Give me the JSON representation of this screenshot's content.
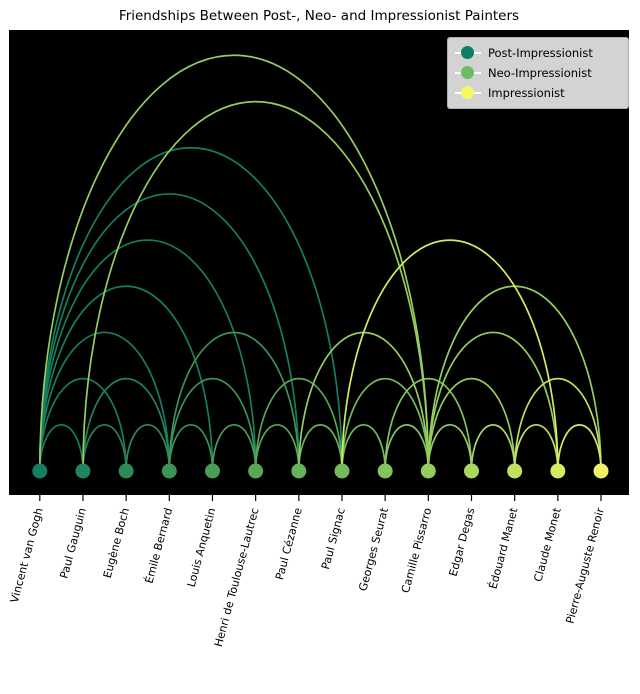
{
  "title": "Friendships Between Post-, Neo- and Impressionist Painters",
  "legend": {
    "items": [
      {
        "label": "Post-Impressionist",
        "color": "#0e7e64"
      },
      {
        "label": "Neo-Impressionist",
        "color": "#6abd62"
      },
      {
        "label": "Impressionist",
        "color": "#f6f763"
      }
    ]
  },
  "chart_data": {
    "type": "arc-diagram",
    "background": "#000000",
    "baseline": "nodes evenly spaced on bottom of black axes; arcs are half-ellipses above baseline, arc height ~= span",
    "legend_position": "upper right",
    "nodes": [
      {
        "name": "Vincent van Gogh",
        "color": "#157e60"
      },
      {
        "name": "Paul Gauguin",
        "color": "#21845c"
      },
      {
        "name": "Eugène Boch",
        "color": "#2e8b58"
      },
      {
        "name": "Émile Bernard",
        "color": "#3b9356"
      },
      {
        "name": "Louis Anquetin",
        "color": "#499d55"
      },
      {
        "name": "Henri de Toulouse-Lautrec",
        "color": "#57a757"
      },
      {
        "name": "Paul Cézanne",
        "color": "#66b15a"
      },
      {
        "name": "Paul Signac",
        "color": "#74ba5c"
      },
      {
        "name": "Georges Seurat",
        "color": "#84c45e"
      },
      {
        "name": "Camille Pissarro",
        "color": "#95cd5f"
      },
      {
        "name": "Edgar Degas",
        "color": "#a9d75f"
      },
      {
        "name": "Édouard Manet",
        "color": "#c0e160"
      },
      {
        "name": "Claude Monet",
        "color": "#d8ea61"
      },
      {
        "name": "Pierre-Auguste Renoir",
        "color": "#f0f263"
      }
    ],
    "edges": [
      {
        "source": 0,
        "target": 1,
        "color": "#157e60"
      },
      {
        "source": 0,
        "target": 2,
        "color": "#157e60"
      },
      {
        "source": 0,
        "target": 3,
        "color": "#157e60"
      },
      {
        "source": 0,
        "target": 4,
        "color": "#157e60"
      },
      {
        "source": 0,
        "target": 5,
        "color": "#157e60"
      },
      {
        "source": 0,
        "target": 6,
        "color": "#157e60"
      },
      {
        "source": 0,
        "target": 7,
        "color": "#157e60"
      },
      {
        "source": 1,
        "target": 2,
        "color": "#21845c"
      },
      {
        "source": 1,
        "target": 3,
        "color": "#21845c"
      },
      {
        "source": 2,
        "target": 3,
        "color": "#2e8b58"
      },
      {
        "source": 3,
        "target": 4,
        "color": "#3b9356"
      },
      {
        "source": 3,
        "target": 5,
        "color": "#3b9356"
      },
      {
        "source": 3,
        "target": 6,
        "color": "#3b9356"
      },
      {
        "source": 4,
        "target": 5,
        "color": "#499d55"
      },
      {
        "source": 5,
        "target": 6,
        "color": "#57a757"
      },
      {
        "source": 5,
        "target": 7,
        "color": "#57a757"
      },
      {
        "source": 6,
        "target": 7,
        "color": "#66b15a"
      },
      {
        "source": 7,
        "target": 8,
        "color": "#74ba5c"
      },
      {
        "source": 7,
        "target": 9,
        "color": "#74ba5c"
      },
      {
        "source": 8,
        "target": 9,
        "color": "#84c45e"
      },
      {
        "source": 8,
        "target": 10,
        "color": "#84c45e"
      },
      {
        "source": 9,
        "target": 0,
        "color": "#95cd5f"
      },
      {
        "source": 9,
        "target": 1,
        "color": "#95cd5f"
      },
      {
        "source": 9,
        "target": 6,
        "color": "#95cd5f"
      },
      {
        "source": 9,
        "target": 10,
        "color": "#95cd5f"
      },
      {
        "source": 9,
        "target": 11,
        "color": "#95cd5f"
      },
      {
        "source": 9,
        "target": 12,
        "color": "#95cd5f"
      },
      {
        "source": 9,
        "target": 13,
        "color": "#95cd5f"
      },
      {
        "source": 10,
        "target": 11,
        "color": "#a9d75f"
      },
      {
        "source": 11,
        "target": 12,
        "color": "#c0e160"
      },
      {
        "source": 11,
        "target": 13,
        "color": "#c0e160"
      },
      {
        "source": 12,
        "target": 7,
        "color": "#d8ea61"
      },
      {
        "source": 12,
        "target": 13,
        "color": "#d8ea61"
      }
    ]
  }
}
